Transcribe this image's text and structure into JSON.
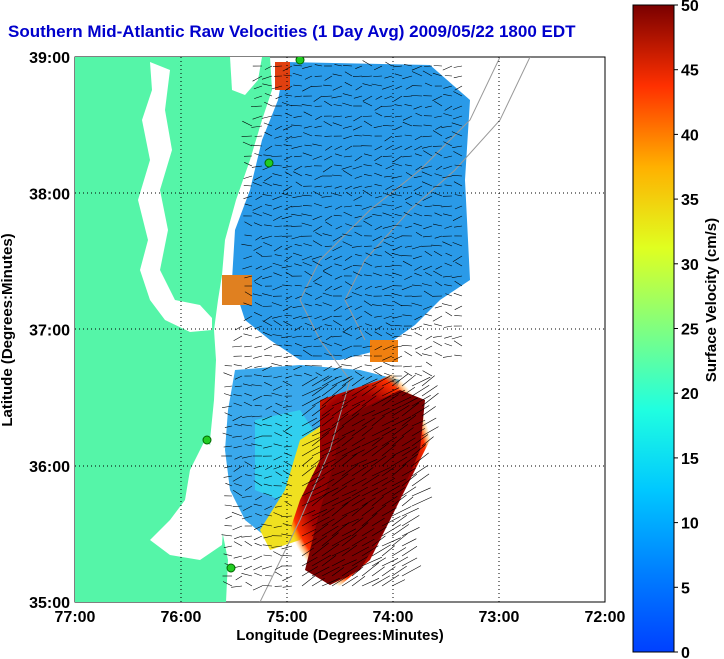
{
  "title": "Southern Mid-Atlantic Raw Velocities (1 Day Avg) 2009/05/22 1800 EDT",
  "map": {
    "xlabel": "Longitude (Degrees:Minutes)",
    "ylabel": "Latitude (Degrees:Minutes)",
    "x_ticks": [
      "77:00",
      "76:00",
      "75:00",
      "74:00",
      "73:00",
      "72:00"
    ],
    "y_ticks": [
      "39:00",
      "38:00",
      "37:00",
      "36:00",
      "35:00"
    ],
    "lon_range": [
      -77,
      -72
    ],
    "lat_range": [
      35,
      39
    ],
    "grid": "dotted"
  },
  "colorbar": {
    "label": "Surface Velocity (cm/s)",
    "ticks": [
      "0",
      "5",
      "10",
      "15",
      "20",
      "25",
      "30",
      "35",
      "40",
      "45",
      "50"
    ],
    "range": [
      0,
      50
    ],
    "colormap": "jet"
  },
  "colors": {
    "land": "#55f5a8",
    "title": "#0000cc",
    "station": "#22cc22"
  }
}
